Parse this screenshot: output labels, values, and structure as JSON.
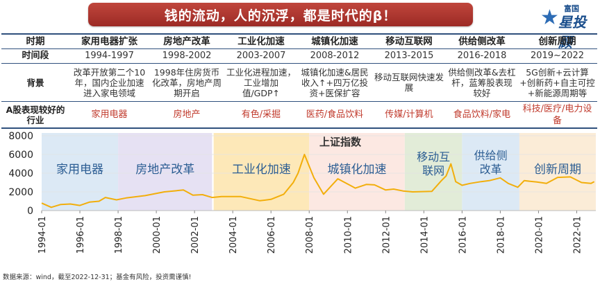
{
  "header": {
    "title": "钱的流动，人的沉浮，都是时代的β！"
  },
  "logo": {
    "line1": "富国",
    "line2": "星投顾",
    "star": "★"
  },
  "table": {
    "row_labels": {
      "period": "时期",
      "years": "时间段",
      "background": "背景",
      "industry": "A股表现较好的行业"
    },
    "columns": [
      {
        "period": "家用电器扩张",
        "years": "1994-1997",
        "background": "改革开放第二个10年，国内企业加速进入家电领域",
        "industry": "家用电器"
      },
      {
        "period": "房地产改革",
        "years": "1998-2002",
        "background": "1998年住房货币化改革，房地产周期开启",
        "industry": "房地产"
      },
      {
        "period": "工业化加速",
        "years": "2003-2007",
        "background": "工业化进程加速，工业增加值/GDP↑",
        "industry": "有色/采掘"
      },
      {
        "period": "城镇化加速",
        "years": "2008-2012",
        "background": "城镇化加速&居民收入↑+四万亿投资+医保扩容",
        "industry": "医药/食品饮料"
      },
      {
        "period": "移动互联网",
        "years": "2013-2015",
        "background": "移动互联网快速发展",
        "industry": "传媒/计算机"
      },
      {
        "period": "供给侧改革",
        "years": "2016-2018",
        "background": "供给侧改革&去杠杆，蓝筹股表现较好",
        "industry": "食品饮料/家电"
      },
      {
        "period": "创新周期",
        "years": "2019~2022",
        "background": "5G创新+云计算+创新药+自主可控+新能源周期等",
        "industry": "科技/医疗/电力设备"
      }
    ]
  },
  "chart_data": {
    "type": "area",
    "title": "上证指数",
    "ylim": [
      0,
      8000
    ],
    "yticks": [
      0,
      2000,
      4000,
      6000,
      8000
    ],
    "xlim": [
      "1994-01",
      "2023-01"
    ],
    "xticks": [
      "1994-01",
      "1996-01",
      "1998-01",
      "2000-01",
      "2002-01",
      "2004-01",
      "2006-01",
      "2008-01",
      "2010-01",
      "2012-01",
      "2014-01",
      "2016-01",
      "2018-01",
      "2020-01",
      "2022-01"
    ],
    "periods": [
      {
        "label": "家用电器",
        "start": "1994-01",
        "end": "1998-01",
        "color": "#dce9f5"
      },
      {
        "label": "房地产改革",
        "start": "1998-01",
        "end": "2002-12",
        "color": "#e6e1f3"
      },
      {
        "label": "工业化加速",
        "start": "2003-01",
        "end": "2008-01",
        "color": "#fde8b8"
      },
      {
        "label": "城镇化加速",
        "start": "2008-01",
        "end": "2013-01",
        "color": "#fce8e2"
      },
      {
        "label": "移动互联网",
        "start": "2013-01",
        "end": "2016-01",
        "color": "#e2ecd8"
      },
      {
        "label": "供给侧改革",
        "start": "2016-01",
        "end": "2019-01",
        "color": "#dce9f5"
      },
      {
        "label": "创新周期",
        "start": "2019-01",
        "end": "2023-01",
        "color": "#fbecd7"
      }
    ],
    "series": [
      {
        "x": [
          "1994-01",
          "1994-07",
          "1995-01",
          "1995-07",
          "1996-01",
          "1996-07",
          "1997-01",
          "1997-05",
          "1997-12",
          "1998-06",
          "1999-06",
          "2000-06",
          "2001-06",
          "2001-12",
          "2002-06",
          "2002-12",
          "2003-06",
          "2004-06",
          "2005-06",
          "2006-01",
          "2006-09",
          "2007-03",
          "2007-06",
          "2007-10",
          "2008-04",
          "2008-10",
          "2009-07",
          "2010-06",
          "2011-01",
          "2011-06",
          "2012-01",
          "2012-06",
          "2012-12",
          "2013-06",
          "2014-06",
          "2014-12",
          "2015-03",
          "2015-06",
          "2015-09",
          "2016-01",
          "2016-06",
          "2017-01",
          "2017-06",
          "2018-01",
          "2018-06",
          "2018-12",
          "2019-04",
          "2019-12",
          "2020-06",
          "2021-01",
          "2021-09",
          "2022-04",
          "2022-10",
          "2022-12"
        ],
        "values": [
          800,
          350,
          650,
          700,
          550,
          900,
          1000,
          1400,
          1150,
          1350,
          1600,
          2000,
          2200,
          1650,
          1700,
          1400,
          1500,
          1500,
          1050,
          1200,
          1750,
          3000,
          4000,
          6000,
          3500,
          1750,
          3400,
          2400,
          2800,
          2750,
          2200,
          2300,
          2100,
          2000,
          2050,
          3200,
          3700,
          5000,
          3100,
          2700,
          2900,
          3100,
          3200,
          3500,
          2900,
          2500,
          3200,
          3050,
          2900,
          3550,
          3600,
          3000,
          2900,
          3100
        ]
      }
    ]
  },
  "source_note": "数据来源：wind，截至2022-12-31；基金有风险，投资需谨慎!"
}
